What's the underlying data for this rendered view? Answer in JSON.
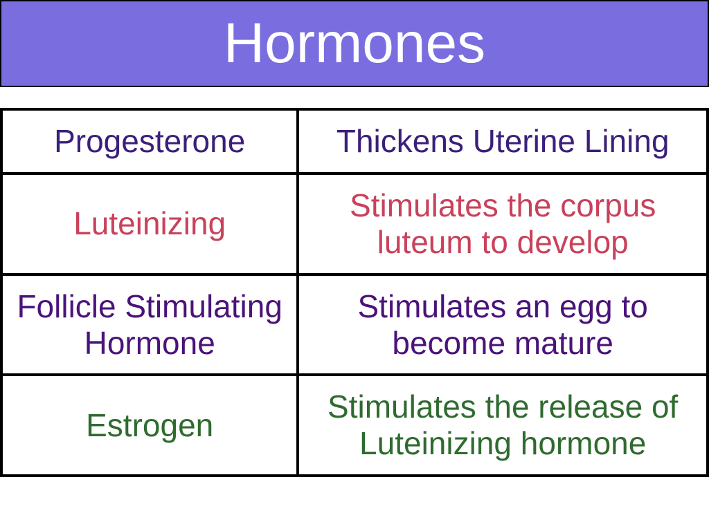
{
  "header": {
    "title": "Hormones",
    "bg_color": "#7a6de0",
    "title_color": "#ffffff",
    "title_fontsize": 82
  },
  "table": {
    "type": "table",
    "border_color": "#000000",
    "border_width": 4,
    "cell_fontsize": 46,
    "rows": [
      {
        "left": {
          "text": "Progesterone",
          "color": "#3b1f7a"
        },
        "right": {
          "text": "Thickens Uterine Lining",
          "color": "#3b1f7a"
        }
      },
      {
        "left": {
          "text": "Luteinizing",
          "color": "#c9415b"
        },
        "right": {
          "text": "Stimulates the corpus luteum to develop",
          "color": "#c9415b"
        }
      },
      {
        "left": {
          "text": "Follicle Stimulating Hormone",
          "color": "#4a137a"
        },
        "right": {
          "text": "Stimulates an egg to become mature",
          "color": "#4a137a"
        }
      },
      {
        "left": {
          "text": "Estrogen",
          "color": "#2f6b2f"
        },
        "right": {
          "text": "Stimulates the release of Luteinizing hormone",
          "color": "#2f6b2f"
        }
      }
    ]
  }
}
